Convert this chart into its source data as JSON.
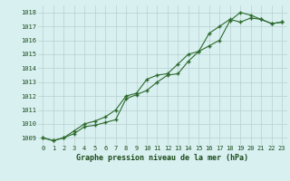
{
  "title": "Graphe pression niveau de la mer (hPa)",
  "x_labels": [
    "0",
    "1",
    "2",
    "3",
    "4",
    "5",
    "6",
    "7",
    "8",
    "9",
    "10",
    "11",
    "12",
    "13",
    "14",
    "15",
    "16",
    "17",
    "18",
    "19",
    "20",
    "21",
    "22",
    "23"
  ],
  "series1": [
    1009.0,
    1008.8,
    1009.0,
    1009.3,
    1009.8,
    1009.9,
    1010.1,
    1010.3,
    1011.8,
    1012.1,
    1012.4,
    1013.0,
    1013.5,
    1013.6,
    1014.5,
    1015.2,
    1015.6,
    1016.0,
    1017.4,
    1018.0,
    1017.8,
    1017.5,
    1017.2,
    1017.3
  ],
  "series2": [
    1009.0,
    1008.8,
    1009.0,
    1009.5,
    1010.0,
    1010.2,
    1010.5,
    1011.0,
    1012.0,
    1012.2,
    1013.2,
    1013.5,
    1013.6,
    1014.3,
    1015.0,
    1015.2,
    1016.5,
    1017.0,
    1017.5,
    1017.3,
    1017.6,
    1017.5,
    1017.2,
    1017.3
  ],
  "line_color": "#2d6a2d",
  "bg_color": "#d8f0f0",
  "grid_color": "#b8d0d0",
  "ylim": [
    1008.5,
    1018.5
  ],
  "yticks": [
    1009,
    1010,
    1011,
    1012,
    1013,
    1014,
    1015,
    1016,
    1017,
    1018
  ],
  "title_color": "#1a4a1a",
  "title_fontsize": 6.0,
  "tick_fontsize": 5.0
}
